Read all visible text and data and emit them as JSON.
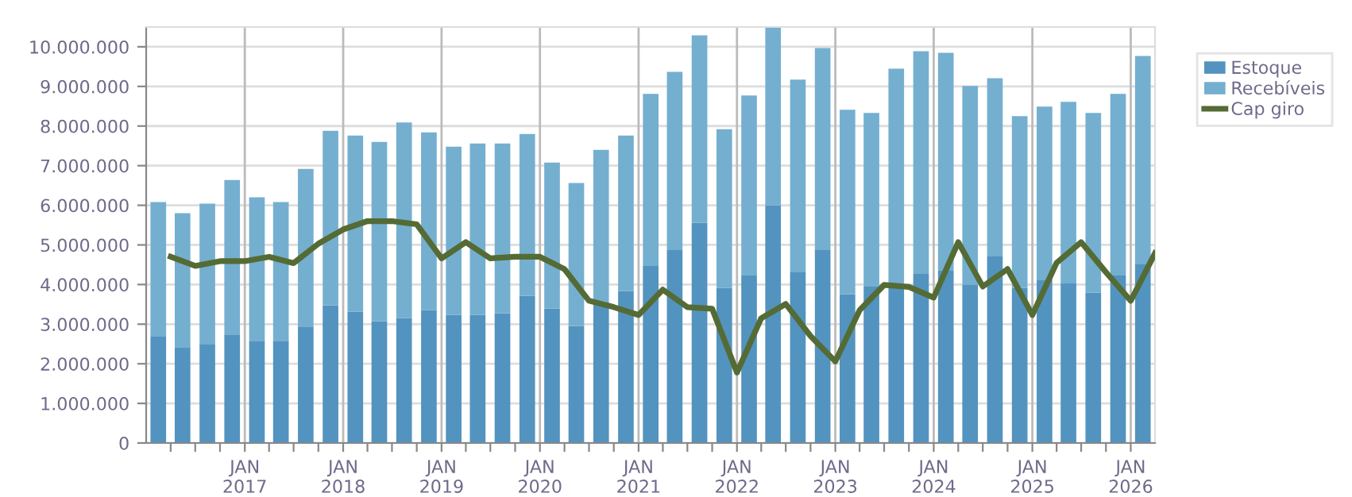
{
  "chart_data": {
    "type": "bar",
    "stacked": true,
    "legend": "top right",
    "grid": true,
    "xlim": [
      "2016-01-01",
      "2026-04-01"
    ],
    "xticks": [
      {
        "value": "2016-04-01",
        "label": null
      },
      {
        "value": "2016-07-01",
        "label": null
      },
      {
        "value": "2016-10-01",
        "label": null
      },
      {
        "value": "2017-01-01",
        "label": "JAN\n2017"
      },
      {
        "value": "2017-04-01",
        "label": null
      },
      {
        "value": "2017-07-01",
        "label": null
      },
      {
        "value": "2017-10-01",
        "label": null
      },
      {
        "value": "2018-01-01",
        "label": "JAN\n2018"
      },
      {
        "value": "2018-04-01",
        "label": null
      },
      {
        "value": "2018-07-01",
        "label": null
      },
      {
        "value": "2018-10-01",
        "label": null
      },
      {
        "value": "2019-01-01",
        "label": "JAN\n2019"
      },
      {
        "value": "2019-04-01",
        "label": null
      },
      {
        "value": "2019-07-01",
        "label": null
      },
      {
        "value": "2019-10-01",
        "label": null
      },
      {
        "value": "2020-01-01",
        "label": "JAN\n2020"
      },
      {
        "value": "2020-04-01",
        "label": null
      },
      {
        "value": "2020-07-01",
        "label": null
      },
      {
        "value": "2020-10-01",
        "label": null
      },
      {
        "value": "2021-01-01",
        "label": "JAN\n2021"
      },
      {
        "value": "2021-04-01",
        "label": null
      },
      {
        "value": "2021-07-01",
        "label": null
      },
      {
        "value": "2021-10-01",
        "label": null
      },
      {
        "value": "2022-01-01",
        "label": "JAN\n2022"
      },
      {
        "value": "2022-04-01",
        "label": null
      },
      {
        "value": "2022-07-01",
        "label": null
      },
      {
        "value": "2022-10-01",
        "label": null
      },
      {
        "value": "2023-01-01",
        "label": "JAN\n2023"
      },
      {
        "value": "2023-04-01",
        "label": null
      },
      {
        "value": "2023-07-01",
        "label": null
      },
      {
        "value": "2023-10-01",
        "label": null
      },
      {
        "value": "2024-01-01",
        "label": "JAN\n2024"
      },
      {
        "value": "2024-04-01",
        "label": null
      },
      {
        "value": "2024-07-01",
        "label": null
      },
      {
        "value": "2024-10-01",
        "label": null
      },
      {
        "value": "2025-01-01",
        "label": "JAN\n2025"
      },
      {
        "value": "2025-04-01",
        "label": null
      },
      {
        "value": "2025-07-01",
        "label": null
      },
      {
        "value": "2025-10-01",
        "label": null
      },
      {
        "value": "2026-01-01",
        "label": "JAN\n2026"
      }
    ],
    "ylim": [
      0,
      10500000
    ],
    "yticks": [
      0,
      {
        "value": 1000000,
        "label": "1.000.000"
      },
      {
        "value": 2000000,
        "label": "2.000.000"
      },
      {
        "value": 3000000,
        "label": "3.000.000"
      },
      {
        "value": 4000000,
        "label": "4.000.000"
      },
      {
        "value": 5000000,
        "label": "5.000.000"
      },
      {
        "value": 6000000,
        "label": "6.000.000"
      },
      {
        "value": 7000000,
        "label": "7.000.000"
      },
      {
        "value": 8000000,
        "label": "8.000.000"
      },
      {
        "value": 9000000,
        "label": "9.000.000"
      },
      {
        "value": 10000000,
        "label": "10.000.000"
      }
    ],
    "x": [
      "2016-02-15",
      "2016-05-15",
      "2016-08-15",
      "2016-11-15",
      "2017-02-15",
      "2017-05-15",
      "2017-08-15",
      "2017-11-15",
      "2018-02-15",
      "2018-05-15",
      "2018-08-15",
      "2018-11-15",
      "2019-02-15",
      "2019-05-15",
      "2019-08-15",
      "2019-11-15",
      "2020-02-15",
      "2020-05-15",
      "2020-08-15",
      "2020-11-15",
      "2021-02-15",
      "2021-05-15",
      "2021-08-15",
      "2021-11-15",
      "2022-02-15",
      "2022-05-15",
      "2022-08-15",
      "2022-11-15",
      "2023-02-15",
      "2023-05-15",
      "2023-08-15",
      "2023-11-15",
      "2024-02-15",
      "2024-05-15",
      "2024-08-15",
      "2024-11-15",
      "2025-02-15",
      "2025-05-15",
      "2025-08-15",
      "2025-11-15",
      "2026-02-15"
    ],
    "series": [
      {
        "name": "Estoque",
        "color": "#5393bf",
        "values": [
          2700000,
          2420000,
          2500000,
          2740000,
          2580000,
          2580000,
          2940000,
          3470000,
          3310000,
          3070000,
          3150000,
          3350000,
          3230000,
          3230000,
          3270000,
          3710000,
          3390000,
          2950000,
          3500000,
          3830000,
          4470000,
          4870000,
          5560000,
          3910000,
          4230000,
          6000000,
          4310000,
          4870000,
          3750000,
          3950000,
          4000000,
          4270000,
          4350000,
          3990000,
          4710000,
          3910000,
          4110000,
          4030000,
          3790000,
          4230000,
          4510000
        ]
      },
      {
        "name": "Recebíveis",
        "color": "#74afd0",
        "values": [
          3380000,
          3380000,
          3540000,
          3900000,
          3620000,
          3500000,
          3980000,
          4410000,
          4450000,
          4530000,
          4940000,
          4490000,
          4250000,
          4330000,
          4290000,
          4090000,
          3690000,
          3610000,
          3900000,
          3930000,
          4340000,
          4500000,
          4730000,
          4010000,
          4540000,
          4480000,
          4860000,
          5100000,
          4660000,
          4380000,
          5450000,
          5620000,
          5500000,
          5020000,
          4500000,
          4340000,
          4380000,
          4580000,
          4540000,
          4580000,
          5260000
        ]
      },
      {
        "name": "Cap giro",
        "type": "line",
        "color": "#556b35",
        "x": [
          "2016-04-01",
          "2016-07-01",
          "2016-10-01",
          "2017-01-01",
          "2017-04-01",
          "2017-07-01",
          "2017-10-01",
          "2018-01-01",
          "2018-04-01",
          "2018-07-01",
          "2018-10-01",
          "2019-01-01",
          "2019-04-01",
          "2019-07-01",
          "2019-10-01",
          "2020-01-01",
          "2020-04-01",
          "2020-07-01",
          "2020-10-01",
          "2021-01-01",
          "2021-04-01",
          "2021-07-01",
          "2021-10-01",
          "2022-01-01",
          "2022-04-01",
          "2022-07-01",
          "2022-10-01",
          "2023-01-01",
          "2023-04-01",
          "2023-07-01",
          "2023-10-01",
          "2024-01-01",
          "2024-04-01",
          "2024-07-01",
          "2024-10-01",
          "2025-01-01",
          "2025-04-01",
          "2025-07-01",
          "2025-10-01",
          "2026-01-01",
          "2026-04-01"
        ],
        "values": [
          4700000,
          4470000,
          4590000,
          4590000,
          4700000,
          4540000,
          5030000,
          5390000,
          5600000,
          5600000,
          5520000,
          4660000,
          5070000,
          4660000,
          4700000,
          4700000,
          4390000,
          3590000,
          3430000,
          3230000,
          3870000,
          3430000,
          3390000,
          1780000,
          3150000,
          3510000,
          2700000,
          2060000,
          3350000,
          3990000,
          3940000,
          3670000,
          5070000,
          3950000,
          4390000,
          3230000,
          4550000,
          5070000,
          4310000,
          3590000,
          4790000
        ]
      }
    ]
  }
}
